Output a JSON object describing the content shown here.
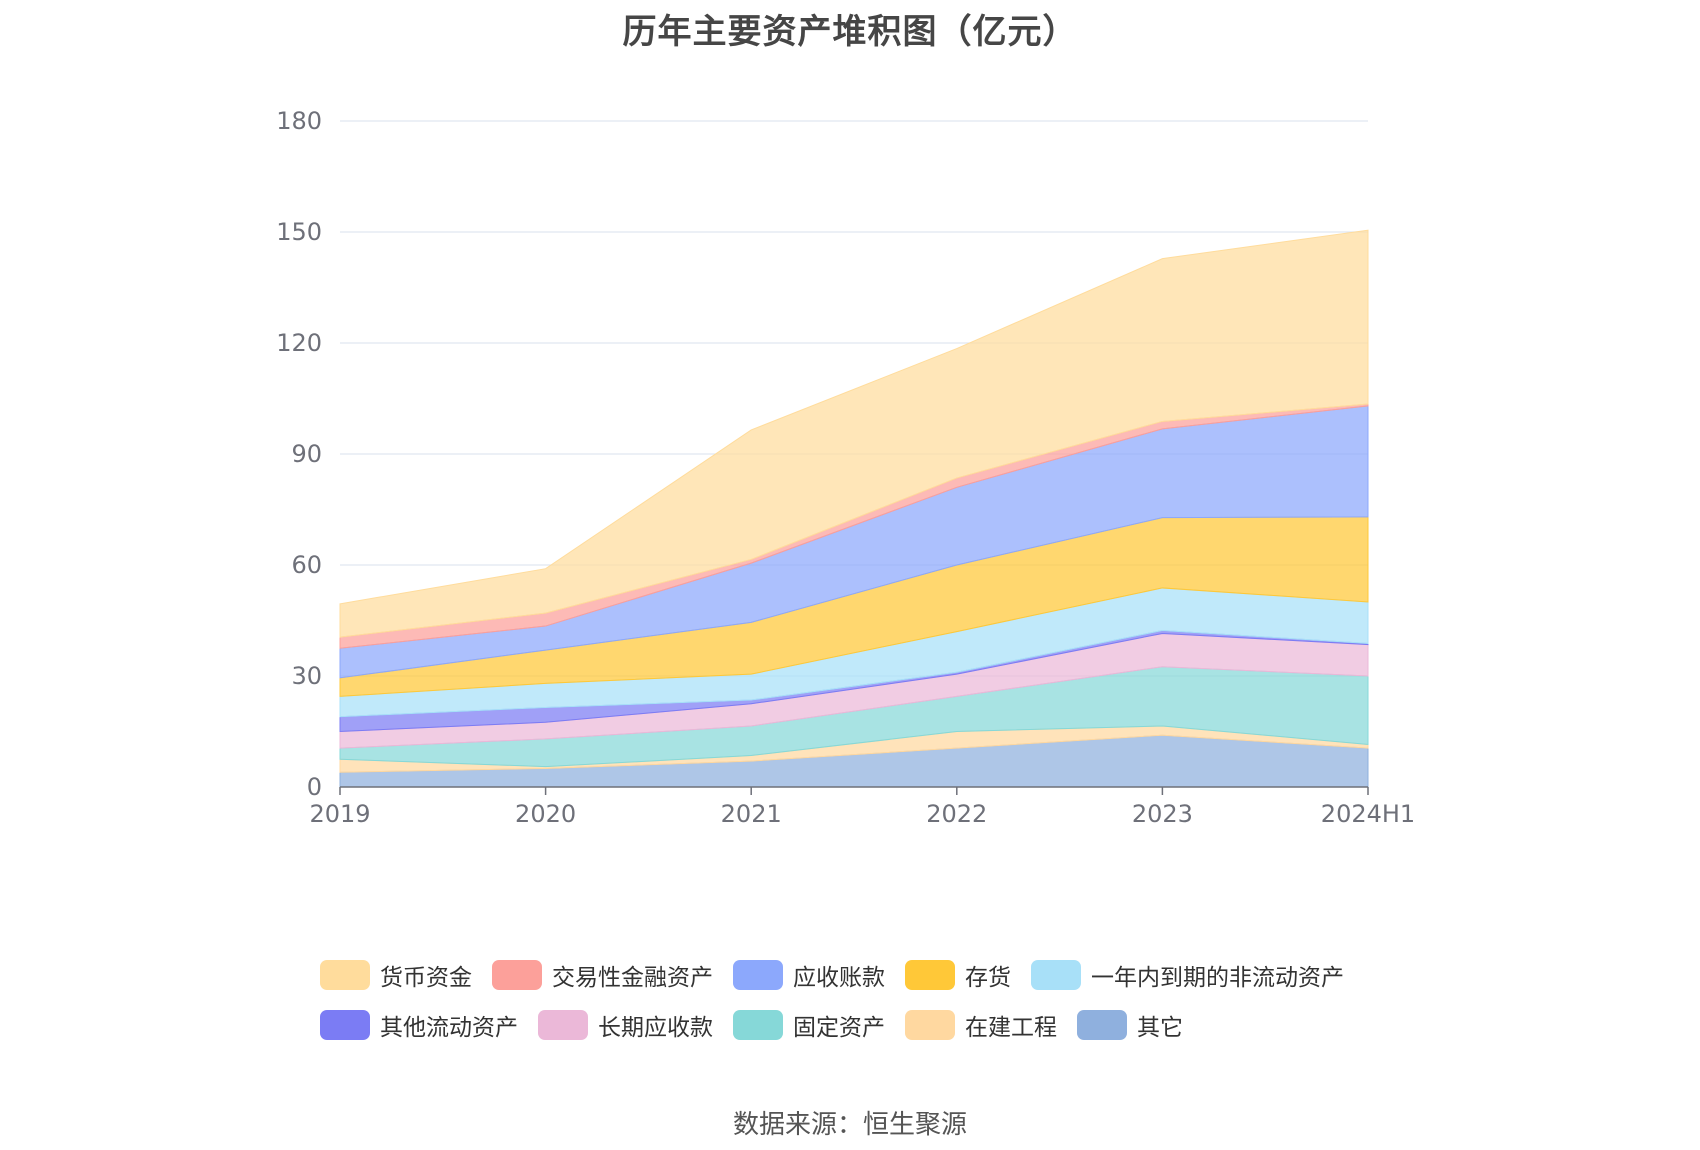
{
  "chart_data": {
    "type": "area",
    "stacked": true,
    "title": "历年主要资产堆积图（亿元）",
    "source": "数据来源：恒生聚源",
    "categories": [
      "2019",
      "2020",
      "2021",
      "2022",
      "2023",
      "2024H1"
    ],
    "ylim": [
      0,
      180
    ],
    "yticks": [
      0,
      30,
      60,
      90,
      120,
      150,
      180
    ],
    "grid": true,
    "legend_position": "bottom",
    "series": [
      {
        "name": "其它",
        "color": "#8fb0de",
        "values": [
          4,
          5,
          7,
          10.5,
          14,
          10.5
        ]
      },
      {
        "name": "在建工程",
        "color": "#ffd8a0",
        "values": [
          3.5,
          0.5,
          1.5,
          4.5,
          2.5,
          1
        ]
      },
      {
        "name": "固定资产",
        "color": "#86d8d8",
        "values": [
          3,
          7.5,
          8,
          9.5,
          16,
          18.5
        ]
      },
      {
        "name": "长期应收款",
        "color": "#ebb8d8",
        "values": [
          4.5,
          4.5,
          6,
          6,
          9,
          8.5
        ]
      },
      {
        "name": "其他流动资产",
        "color": "#7b7cf4",
        "values": [
          4,
          4,
          1,
          0.5,
          0.8,
          0.3
        ]
      },
      {
        "name": "一年内到期的非流动资产",
        "color": "#a8e0f8",
        "values": [
          5.5,
          6.5,
          7,
          11,
          11.5,
          11.2
        ]
      },
      {
        "name": "存货",
        "color": "#ffc838",
        "values": [
          5,
          9,
          14,
          18,
          19,
          23
        ]
      },
      {
        "name": "应收账款",
        "color": "#8ca8fc",
        "values": [
          8,
          6.5,
          16,
          21,
          24,
          30
        ]
      },
      {
        "name": "交易性金融资产",
        "color": "#fca09a",
        "values": [
          3,
          3.5,
          1,
          2.5,
          2,
          0.5
        ]
      },
      {
        "name": "货币资金",
        "color": "#ffdc9c",
        "values": [
          9,
          12,
          35,
          35,
          44,
          47
        ]
      }
    ]
  },
  "legend": {
    "rows": [
      [
        "货币资金",
        "交易性金融资产",
        "应收账款",
        "存货",
        "一年内到期的非流动资产"
      ],
      [
        "其他流动资产",
        "长期应收款",
        "固定资产",
        "在建工程",
        "其它"
      ]
    ]
  }
}
